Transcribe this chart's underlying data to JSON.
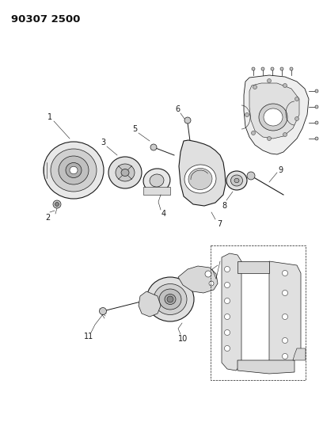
{
  "title": "90307 2500",
  "bg_color": "#ffffff",
  "fg_color": "#000000",
  "fig_width": 4.08,
  "fig_height": 5.33,
  "dpi": 100,
  "lc": "#1a1a1a",
  "lw": 0.55
}
